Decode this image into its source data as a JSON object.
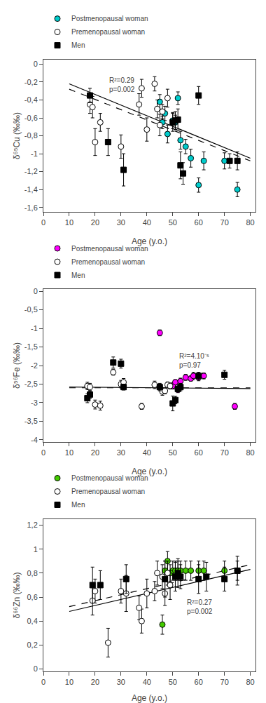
{
  "chart_data": [
    {
      "type": "scatter",
      "xlabel": "Age (y.o.)",
      "ylabel": "δ⁶⁵Cu (‰‰)",
      "xlim": [
        0,
        82
      ],
      "xticks": [
        0,
        10,
        20,
        30,
        40,
        50,
        60,
        70,
        80
      ],
      "ylim": [
        -1.65,
        0.05
      ],
      "yticks": [
        0,
        {
          "value": -0.2,
          "label": "-0,2"
        },
        {
          "value": -0.4,
          "label": "-0,4"
        },
        {
          "value": -0.6,
          "label": "-0,6"
        },
        {
          "value": -0.8,
          "label": "-0,8"
        },
        -1,
        {
          "value": -1.2,
          "label": "-1,2"
        },
        {
          "value": -1.4,
          "label": "-1,4"
        },
        {
          "value": -1.6,
          "label": "-1,6"
        }
      ],
      "grid": false,
      "legend": "above",
      "series": [
        {
          "type": "line",
          "line_style": "dashed",
          "color": "#000000",
          "x": [
            10,
            80
          ],
          "values": [
            -0.28,
            -1.08
          ]
        },
        {
          "type": "line",
          "line_style": "solid",
          "color": "#000000",
          "x": [
            10,
            80
          ],
          "values": [
            -0.22,
            -1.05
          ]
        },
        {
          "name": "Postmenopausal woman",
          "type": "scatter",
          "marker": "circle",
          "color": "#00CCCC",
          "x": [
            45,
            46,
            47,
            48,
            50,
            51,
            52,
            53,
            55,
            57,
            60,
            62,
            70,
            75
          ],
          "values": [
            -0.42,
            -0.65,
            -0.55,
            -0.78,
            -0.63,
            -0.65,
            -0.38,
            -0.85,
            -0.92,
            -1.05,
            -1.35,
            -1.08,
            -1.08,
            -1.4
          ],
          "yerr": [
            0.08,
            0.07,
            0.08,
            0.1,
            0.09,
            0.08,
            0.07,
            0.1,
            0.08,
            0.1,
            0.08,
            0.1,
            0.09,
            0.08
          ]
        },
        {
          "name": "Premenopausal woman",
          "type": "scatter",
          "marker": "circle",
          "color": "#FFFFFF",
          "x": [
            18,
            19,
            20,
            22,
            30,
            37,
            38,
            40,
            43,
            44,
            45,
            46,
            48
          ],
          "values": [
            -0.45,
            -0.48,
            -0.87,
            -0.65,
            -0.92,
            -0.45,
            -0.27,
            -0.73,
            -0.22,
            -0.5,
            -0.68,
            -0.53,
            -0.38
          ],
          "yerr": [
            0.1,
            0.12,
            0.15,
            0.1,
            0.13,
            0.12,
            0.1,
            0.13,
            0.08,
            0.1,
            0.12,
            0.08,
            0.1
          ]
        },
        {
          "name": "Men",
          "type": "scatter",
          "marker": "square",
          "color": "#000000",
          "x": [
            18,
            25,
            31,
            50,
            51,
            52,
            53,
            54,
            60,
            72,
            75
          ],
          "values": [
            -0.35,
            -0.87,
            -1.18,
            -0.65,
            -0.63,
            -0.62,
            -1.13,
            -1.22,
            -0.35,
            -1.08,
            -1.08
          ],
          "yerr": [
            0.08,
            0.15,
            0.18,
            0.1,
            0.1,
            0.12,
            0.15,
            0.12,
            0.1,
            0.08,
            0.1
          ]
        }
      ],
      "annotations": [
        {
          "text": "R²=0.29\np=0.002",
          "x": 25,
          "y": -0.12
        }
      ]
    },
    {
      "type": "scatter",
      "xlabel": "Age (y.o.)",
      "ylabel": "δ⁵⁶Fe (‰‰)",
      "xlim": [
        0,
        82
      ],
      "xticks": [
        0,
        10,
        20,
        30,
        40,
        50,
        60,
        70,
        80
      ],
      "ylim": [
        -4.05,
        0.05
      ],
      "yticks": [
        0,
        {
          "value": -0.5,
          "label": "-0,5"
        },
        -1,
        {
          "value": -1.5,
          "label": "-1,5"
        },
        -2,
        {
          "value": -2.5,
          "label": "-2,5"
        },
        -3,
        {
          "value": -3.5,
          "label": "-3,5"
        },
        -4
      ],
      "grid": false,
      "legend": "above",
      "series": [
        {
          "type": "line",
          "line_style": "dashed",
          "color": "#000000",
          "x": [
            10,
            80
          ],
          "values": [
            -2.6,
            -2.6
          ]
        },
        {
          "type": "line",
          "line_style": "solid",
          "color": "#000000",
          "x": [
            10,
            80
          ],
          "values": [
            -2.58,
            -2.62
          ]
        },
        {
          "name": "Postmenopausal woman",
          "type": "scatter",
          "marker": "circle",
          "color": "#FF00FF",
          "x": [
            45,
            50,
            51,
            52,
            53,
            55,
            57,
            58,
            60,
            62,
            74
          ],
          "values": [
            -1.12,
            -2.55,
            -2.45,
            -2.65,
            -2.42,
            -2.32,
            -2.35,
            -2.28,
            -2.32,
            -2.28,
            -3.1
          ],
          "yerr": [
            0.08,
            0.08,
            0.07,
            0.08,
            0.08,
            0.08,
            0.07,
            0.1,
            0.09,
            0.08,
            0.08
          ]
        },
        {
          "name": "Premenopausal woman",
          "type": "scatter",
          "marker": "circle",
          "color": "#FFFFFF",
          "x": [
            17,
            18,
            20,
            22,
            27,
            30,
            31,
            38,
            43,
            45,
            46,
            47,
            48,
            49
          ],
          "values": [
            -2.55,
            -2.58,
            -3.05,
            -3.08,
            -2.18,
            -2.5,
            -2.45,
            -3.1,
            -2.52,
            -2.58,
            -2.7,
            -2.68,
            -2.52,
            -2.55
          ],
          "yerr": [
            0.1,
            0.1,
            0.12,
            0.12,
            0.08,
            0.1,
            0.1,
            0.08,
            0.1,
            0.08,
            0.1,
            0.08,
            0.08,
            0.08
          ]
        },
        {
          "name": "Men",
          "type": "scatter",
          "marker": "square",
          "color": "#000000",
          "x": [
            17,
            18,
            27,
            30,
            31,
            45,
            50,
            51,
            52,
            53,
            60,
            70
          ],
          "values": [
            -2.88,
            -2.78,
            -1.92,
            -1.95,
            -2.58,
            -2.58,
            -3.02,
            -2.93,
            -2.63,
            -2.58,
            -2.28,
            -2.25
          ],
          "yerr": [
            0.12,
            0.1,
            0.15,
            0.12,
            0.08,
            0.1,
            0.2,
            0.1,
            0.08,
            0.1,
            0.1,
            0.12
          ]
        }
      ],
      "annotations": [
        {
          "text": "R²=4.10⁻⁵\np=0.97",
          "x": 52,
          "y": -1.6
        }
      ]
    },
    {
      "type": "scatter",
      "xlabel": "Age (y.o.)",
      "ylabel": "δ⁶⁶Zn (‰‰)",
      "xlim": [
        0,
        82
      ],
      "xticks": [
        0,
        10,
        20,
        30,
        40,
        50,
        60,
        70,
        80
      ],
      "ylim": [
        -0.02,
        1.25
      ],
      "yticks": [
        0,
        {
          "value": 0.2,
          "label": "0,2"
        },
        {
          "value": 0.4,
          "label": "0,4"
        },
        {
          "value": 0.6,
          "label": "0,6"
        },
        {
          "value": 0.8,
          "label": "0,8"
        },
        1,
        {
          "value": 1.2,
          "label": "1,2"
        }
      ],
      "grid": false,
      "legend": "above",
      "series": [
        {
          "type": "line",
          "line_style": "dashed",
          "color": "#000000",
          "x": [
            10,
            80
          ],
          "values": [
            0.52,
            0.87
          ]
        },
        {
          "type": "line",
          "line_style": "solid",
          "color": "#000000",
          "x": [
            10,
            80
          ],
          "values": [
            0.48,
            0.83
          ]
        },
        {
          "name": "Postmenopausal woman",
          "type": "scatter",
          "marker": "circle",
          "color": "#44CC00",
          "x": [
            46,
            47,
            48,
            49,
            50,
            51,
            52,
            53,
            55,
            57,
            60,
            62,
            70,
            75
          ],
          "values": [
            0.37,
            0.82,
            0.9,
            0.8,
            0.82,
            0.82,
            0.82,
            0.82,
            0.82,
            0.82,
            0.82,
            0.82,
            0.82,
            0.82
          ],
          "yerr": [
            0.08,
            0.08,
            0.08,
            0.07,
            0.08,
            0.08,
            0.08,
            0.08,
            0.08,
            0.08,
            0.08,
            0.08,
            0.08,
            0.08
          ]
        },
        {
          "name": "Premenopausal woman",
          "type": "scatter",
          "marker": "circle",
          "color": "#FFFFFF",
          "x": [
            19,
            20,
            25,
            30,
            32,
            37,
            38,
            40,
            43,
            44,
            46,
            47,
            48,
            49
          ],
          "values": [
            0.57,
            0.65,
            0.22,
            0.65,
            0.63,
            0.51,
            0.4,
            0.63,
            0.65,
            0.8,
            0.77,
            0.63,
            0.8,
            0.7
          ],
          "yerr": [
            0.12,
            0.1,
            0.12,
            0.1,
            0.15,
            0.1,
            0.1,
            0.12,
            0.08,
            0.1,
            0.1,
            0.1,
            0.1,
            0.12
          ]
        },
        {
          "name": "Men",
          "type": "scatter",
          "marker": "square",
          "color": "#000000",
          "x": [
            19,
            22,
            32,
            47,
            51,
            52,
            53,
            60,
            63,
            70,
            75
          ],
          "values": [
            0.7,
            0.7,
            0.75,
            0.75,
            0.77,
            0.8,
            0.77,
            0.75,
            0.77,
            0.75,
            0.82
          ],
          "yerr": [
            0.15,
            0.12,
            0.12,
            0.15,
            0.12,
            0.12,
            0.1,
            0.12,
            0.12,
            0.1,
            0.12
          ]
        }
      ],
      "annotations": [
        {
          "text": "R²=0.27\np=0.002",
          "x": 55,
          "y": 0.6
        }
      ]
    }
  ]
}
